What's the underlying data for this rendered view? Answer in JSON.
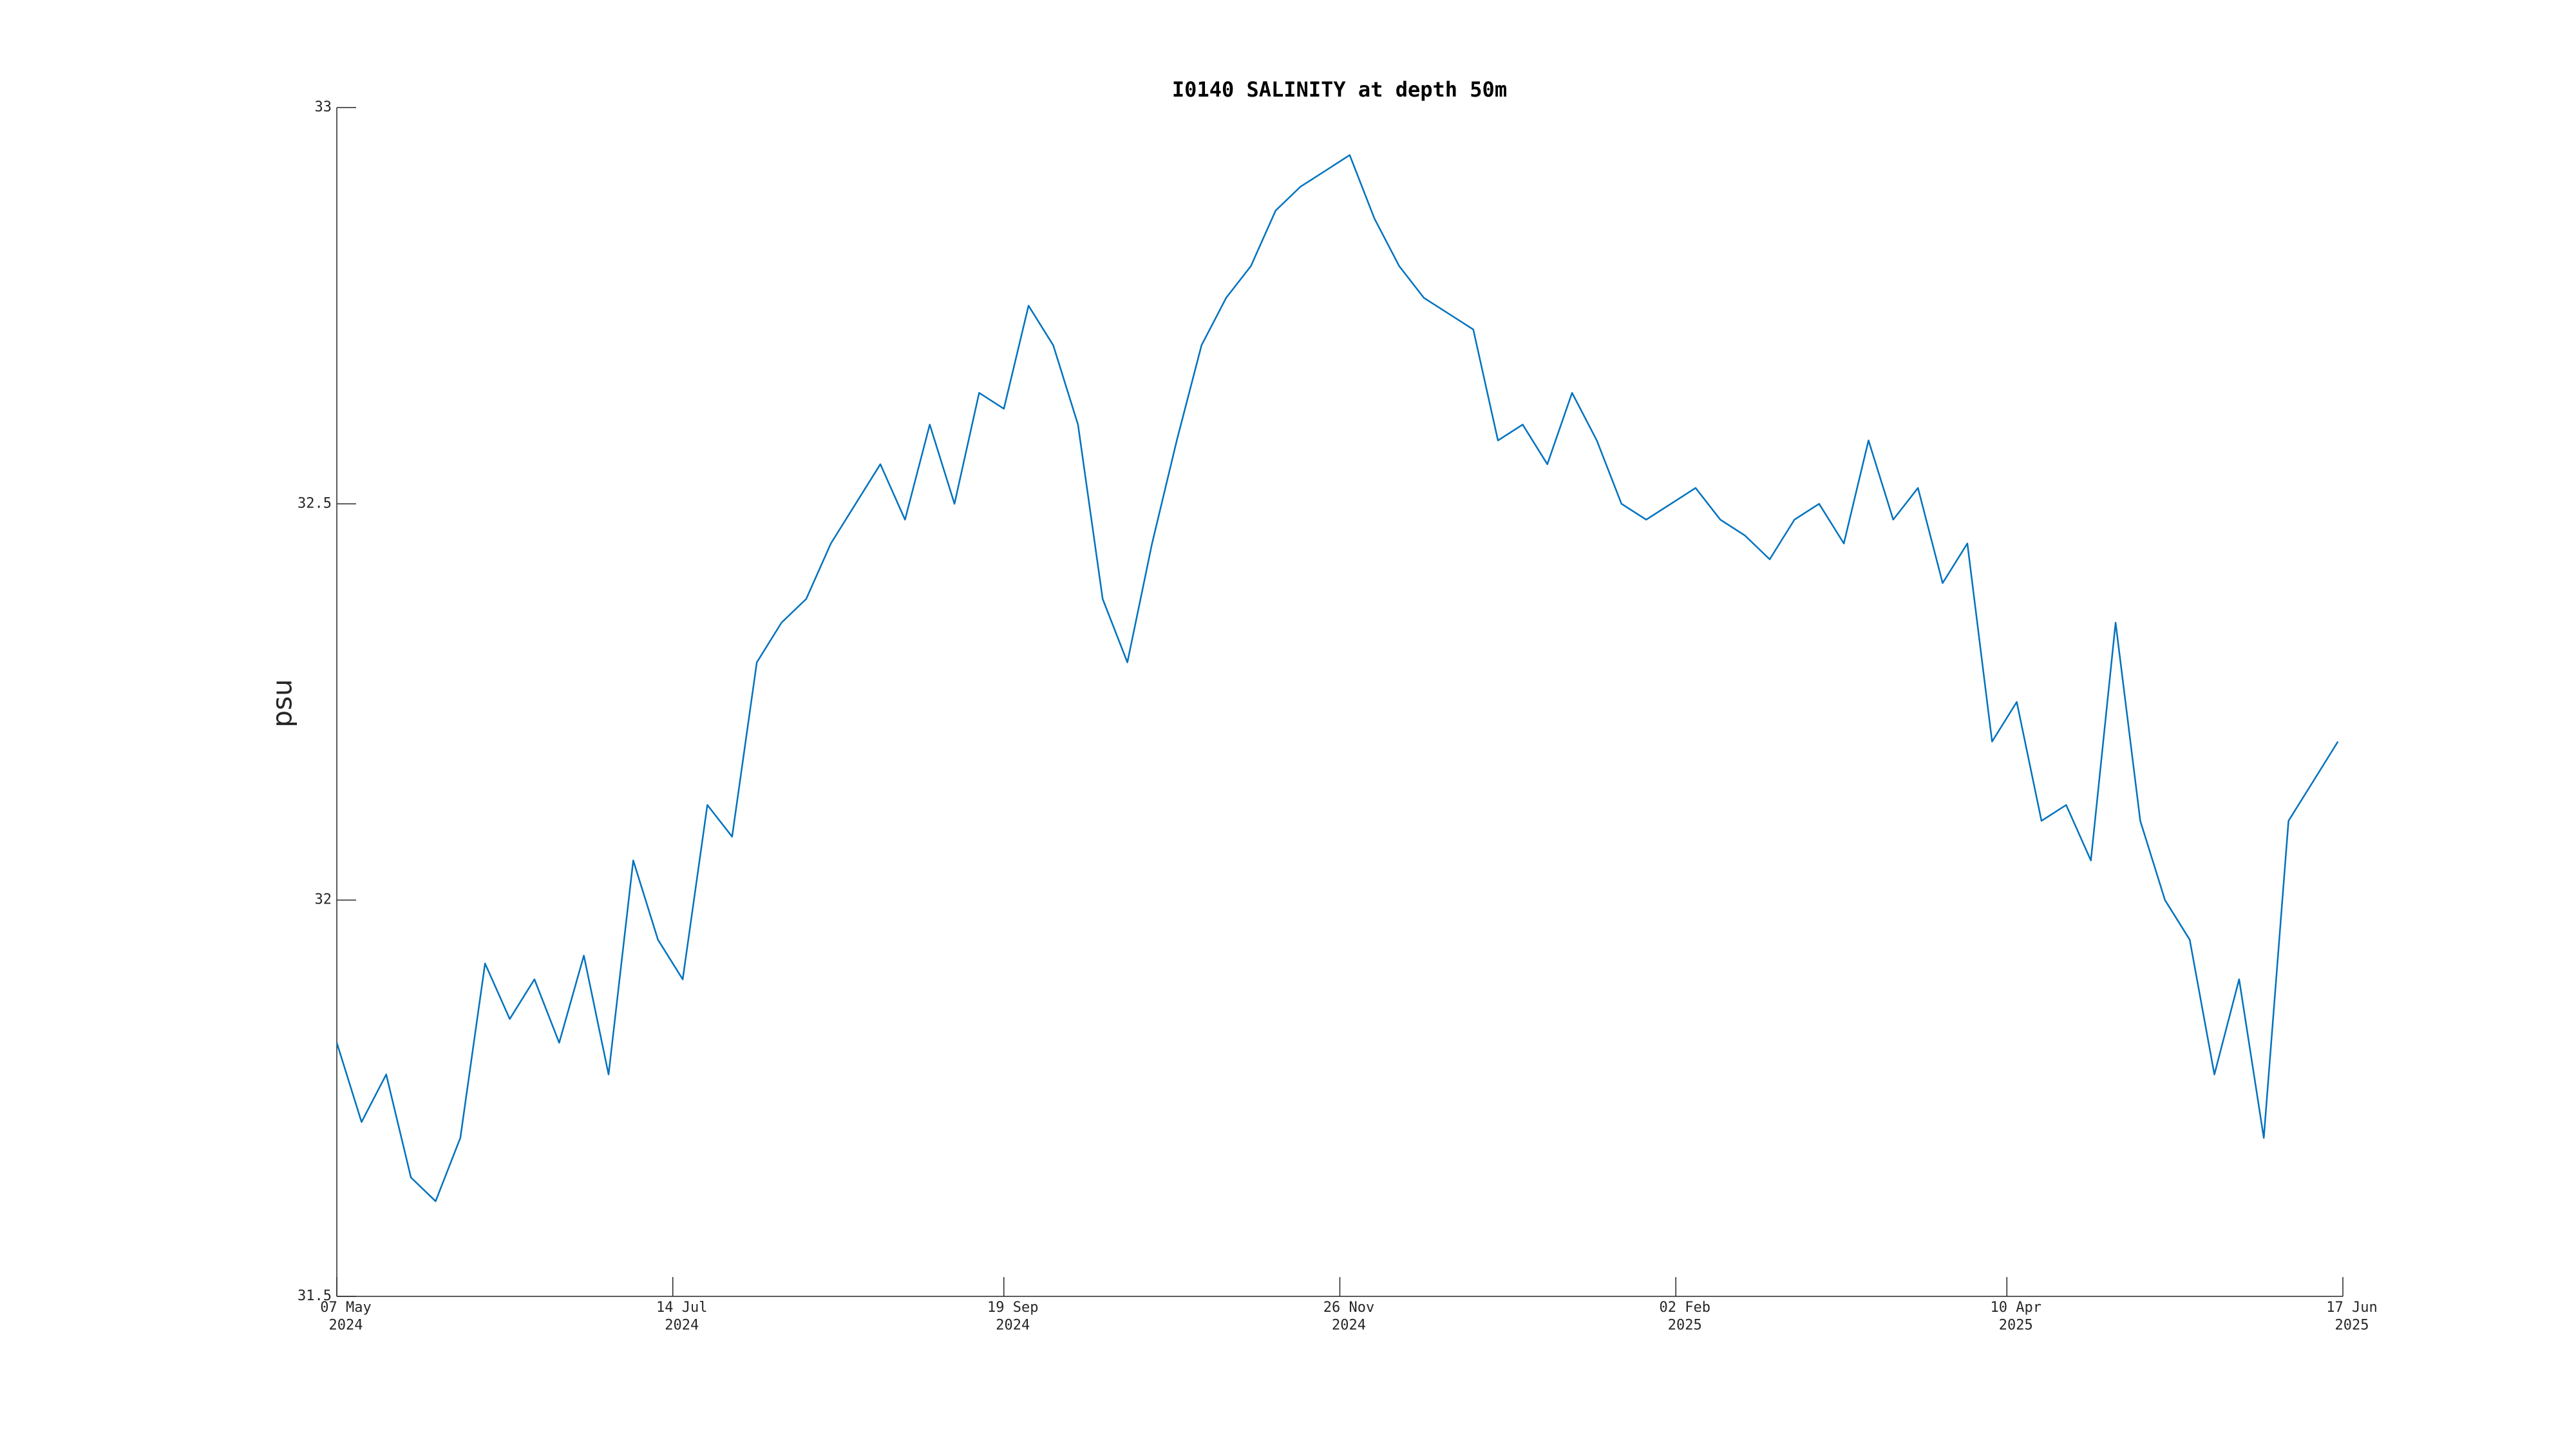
{
  "chart_data": {
    "type": "line",
    "title": "I0140 SALINITY at depth 50m",
    "y_label": "psu",
    "x": [
      "2024-05-07",
      "2024-05-12",
      "2024-05-17",
      "2024-05-22",
      "2024-05-27",
      "2024-06-01",
      "2024-06-06",
      "2024-06-11",
      "2024-06-16",
      "2024-06-21",
      "2024-06-26",
      "2024-07-01",
      "2024-07-06",
      "2024-07-11",
      "2024-07-16",
      "2024-07-21",
      "2024-07-26",
      "2024-07-31",
      "2024-08-05",
      "2024-08-10",
      "2024-08-15",
      "2024-08-20",
      "2024-08-25",
      "2024-08-30",
      "2024-09-04",
      "2024-09-09",
      "2024-09-14",
      "2024-09-19",
      "2024-09-24",
      "2024-09-29",
      "2024-10-04",
      "2024-10-09",
      "2024-10-14",
      "2024-10-19",
      "2024-10-24",
      "2024-10-29",
      "2024-11-03",
      "2024-11-08",
      "2024-11-13",
      "2024-11-18",
      "2024-11-23",
      "2024-11-28",
      "2024-12-03",
      "2024-12-08",
      "2024-12-13",
      "2024-12-18",
      "2024-12-23",
      "2024-12-28",
      "2025-01-02",
      "2025-01-07",
      "2025-01-12",
      "2025-01-17",
      "2025-01-22",
      "2025-01-27",
      "2025-02-01",
      "2025-02-06",
      "2025-02-11",
      "2025-02-16",
      "2025-02-21",
      "2025-02-26",
      "2025-03-03",
      "2025-03-08",
      "2025-03-13",
      "2025-03-18",
      "2025-03-23",
      "2025-03-28",
      "2025-04-02",
      "2025-04-07",
      "2025-04-12",
      "2025-04-17",
      "2025-04-22",
      "2025-04-27",
      "2025-05-02",
      "2025-05-07",
      "2025-05-12",
      "2025-05-17",
      "2025-05-22",
      "2025-05-27",
      "2025-06-01",
      "2025-06-06",
      "2025-06-11",
      "2025-06-16"
    ],
    "series": [
      {
        "name": "salinity",
        "color": "#0072bd",
        "values": [
          31.82,
          31.72,
          31.78,
          31.65,
          31.62,
          31.7,
          31.92,
          31.85,
          31.9,
          31.82,
          31.93,
          31.78,
          32.05,
          31.95,
          31.9,
          32.12,
          32.08,
          32.3,
          32.35,
          32.38,
          32.45,
          32.5,
          32.55,
          32.48,
          32.6,
          32.5,
          32.64,
          32.62,
          32.75,
          32.7,
          32.6,
          32.38,
          32.3,
          32.45,
          32.58,
          32.7,
          32.76,
          32.8,
          32.87,
          32.9,
          32.92,
          32.94,
          32.86,
          32.8,
          32.76,
          32.74,
          32.72,
          32.58,
          32.6,
          32.55,
          32.64,
          32.58,
          32.5,
          32.48,
          32.5,
          32.52,
          32.48,
          32.46,
          32.43,
          32.48,
          32.5,
          32.45,
          32.58,
          32.48,
          32.52,
          32.4,
          32.45,
          32.2,
          32.25,
          32.1,
          32.12,
          32.05,
          32.35,
          32.1,
          32.0,
          31.95,
          31.78,
          31.9,
          31.7,
          32.1,
          32.15,
          32.2
        ]
      }
    ],
    "xlim": [
      "2024-05-07",
      "2025-06-17"
    ],
    "xticks": [
      {
        "value": "2024-05-07",
        "label": "07 May\n2024"
      },
      {
        "value": "2024-07-14",
        "label": "14 Jul\n2024"
      },
      {
        "value": "2024-09-19",
        "label": "19 Sep\n2024"
      },
      {
        "value": "2024-11-26",
        "label": "26 Nov\n2024"
      },
      {
        "value": "2025-02-02",
        "label": "02 Feb\n2025"
      },
      {
        "value": "2025-04-10",
        "label": "10 Apr\n2025"
      },
      {
        "value": "2025-06-17",
        "label": "17 Jun\n2025"
      }
    ],
    "ylim": [
      31.5,
      33
    ],
    "yticks": [
      31.5,
      32,
      32.5,
      33
    ],
    "grid": false
  }
}
